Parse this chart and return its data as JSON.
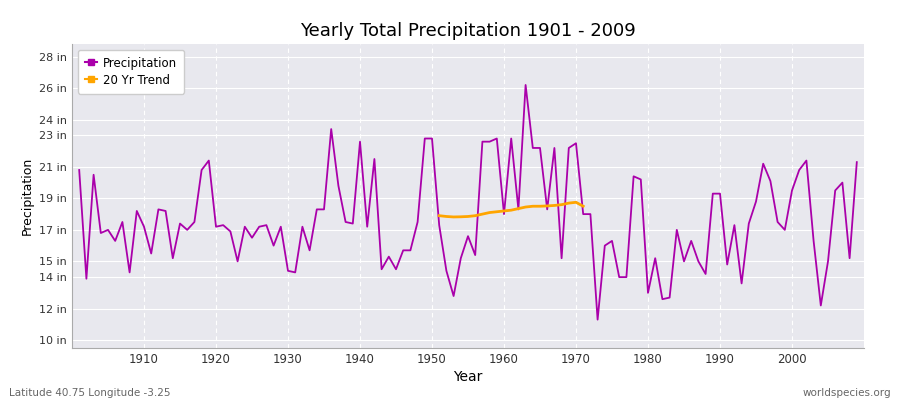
{
  "title": "Yearly Total Precipitation 1901 - 2009",
  "xlabel": "Year",
  "ylabel": "Precipitation",
  "lat_lon_label": "Latitude 40.75 Longitude -3.25",
  "source_label": "worldspecies.org",
  "precip_color": "#aa00aa",
  "trend_color": "#FFA500",
  "fig_bg_color": "#ffffff",
  "plot_bg_color": "#e8e8ee",
  "yticks": [
    10,
    12,
    14,
    15,
    17,
    19,
    21,
    23,
    24,
    26,
    28
  ],
  "ytick_labels": [
    "10 in",
    "12 in",
    "14 in",
    "15 in",
    "17 in",
    "19 in",
    "21 in",
    "23 in",
    "24 in",
    "26 in",
    "28 in"
  ],
  "ylim": [
    9.5,
    28.8
  ],
  "xlim": [
    1900,
    2010
  ],
  "xticks": [
    1910,
    1920,
    1930,
    1940,
    1950,
    1960,
    1970,
    1980,
    1990,
    2000
  ],
  "years": [
    1901,
    1902,
    1903,
    1904,
    1905,
    1906,
    1907,
    1908,
    1909,
    1910,
    1911,
    1912,
    1913,
    1914,
    1915,
    1916,
    1917,
    1918,
    1919,
    1920,
    1921,
    1922,
    1923,
    1924,
    1925,
    1926,
    1927,
    1928,
    1929,
    1930,
    1931,
    1932,
    1933,
    1934,
    1935,
    1936,
    1937,
    1938,
    1939,
    1940,
    1941,
    1942,
    1943,
    1944,
    1945,
    1946,
    1947,
    1948,
    1949,
    1950,
    1951,
    1952,
    1953,
    1954,
    1955,
    1956,
    1957,
    1958,
    1959,
    1960,
    1961,
    1962,
    1963,
    1964,
    1965,
    1966,
    1967,
    1968,
    1969,
    1970,
    1971,
    1972,
    1973,
    1974,
    1975,
    1976,
    1977,
    1978,
    1979,
    1980,
    1981,
    1982,
    1983,
    1984,
    1985,
    1986,
    1987,
    1988,
    1989,
    1990,
    1991,
    1992,
    1993,
    1994,
    1995,
    1996,
    1997,
    1998,
    1999,
    2000,
    2001,
    2002,
    2003,
    2004,
    2005,
    2006,
    2007,
    2008,
    2009
  ],
  "precip": [
    20.8,
    13.9,
    20.5,
    16.8,
    17.0,
    16.3,
    17.5,
    14.3,
    18.2,
    17.2,
    15.5,
    18.3,
    18.2,
    15.2,
    17.4,
    17.0,
    17.5,
    20.8,
    21.4,
    17.2,
    17.3,
    16.9,
    15.0,
    17.2,
    16.5,
    17.2,
    17.3,
    16.0,
    17.2,
    14.4,
    14.3,
    17.2,
    15.7,
    18.3,
    18.3,
    23.4,
    19.8,
    17.5,
    17.4,
    22.6,
    17.2,
    21.5,
    14.5,
    15.3,
    14.5,
    15.7,
    15.7,
    17.5,
    22.8,
    22.8,
    17.3,
    14.4,
    12.8,
    15.2,
    16.6,
    15.4,
    22.6,
    22.6,
    22.8,
    18.0,
    22.8,
    18.3,
    26.2,
    22.2,
    22.2,
    18.3,
    22.2,
    15.2,
    22.2,
    22.5,
    18.0,
    18.0,
    11.3,
    16.0,
    16.3,
    14.0,
    14.0,
    20.4,
    20.2,
    13.0,
    15.2,
    12.6,
    12.7,
    17.0,
    15.0,
    16.3,
    15.0,
    14.2,
    19.3,
    19.3,
    14.8,
    17.3,
    13.6,
    17.4,
    18.8,
    21.2,
    20.1,
    17.5,
    17.0,
    19.5,
    20.8,
    21.4,
    16.3,
    12.2,
    15.0,
    19.5,
    20.0,
    15.2,
    21.3
  ],
  "trend_years": [
    1951,
    1952,
    1953,
    1954,
    1955,
    1956,
    1957,
    1958,
    1959,
    1960,
    1961,
    1962,
    1963,
    1964,
    1965,
    1966,
    1967,
    1968,
    1969,
    1970,
    1971
  ],
  "trend_values": [
    17.9,
    17.85,
    17.82,
    17.83,
    17.85,
    17.9,
    18.0,
    18.1,
    18.15,
    18.2,
    18.25,
    18.35,
    18.45,
    18.5,
    18.5,
    18.52,
    18.55,
    18.6,
    18.7,
    18.75,
    18.5
  ]
}
